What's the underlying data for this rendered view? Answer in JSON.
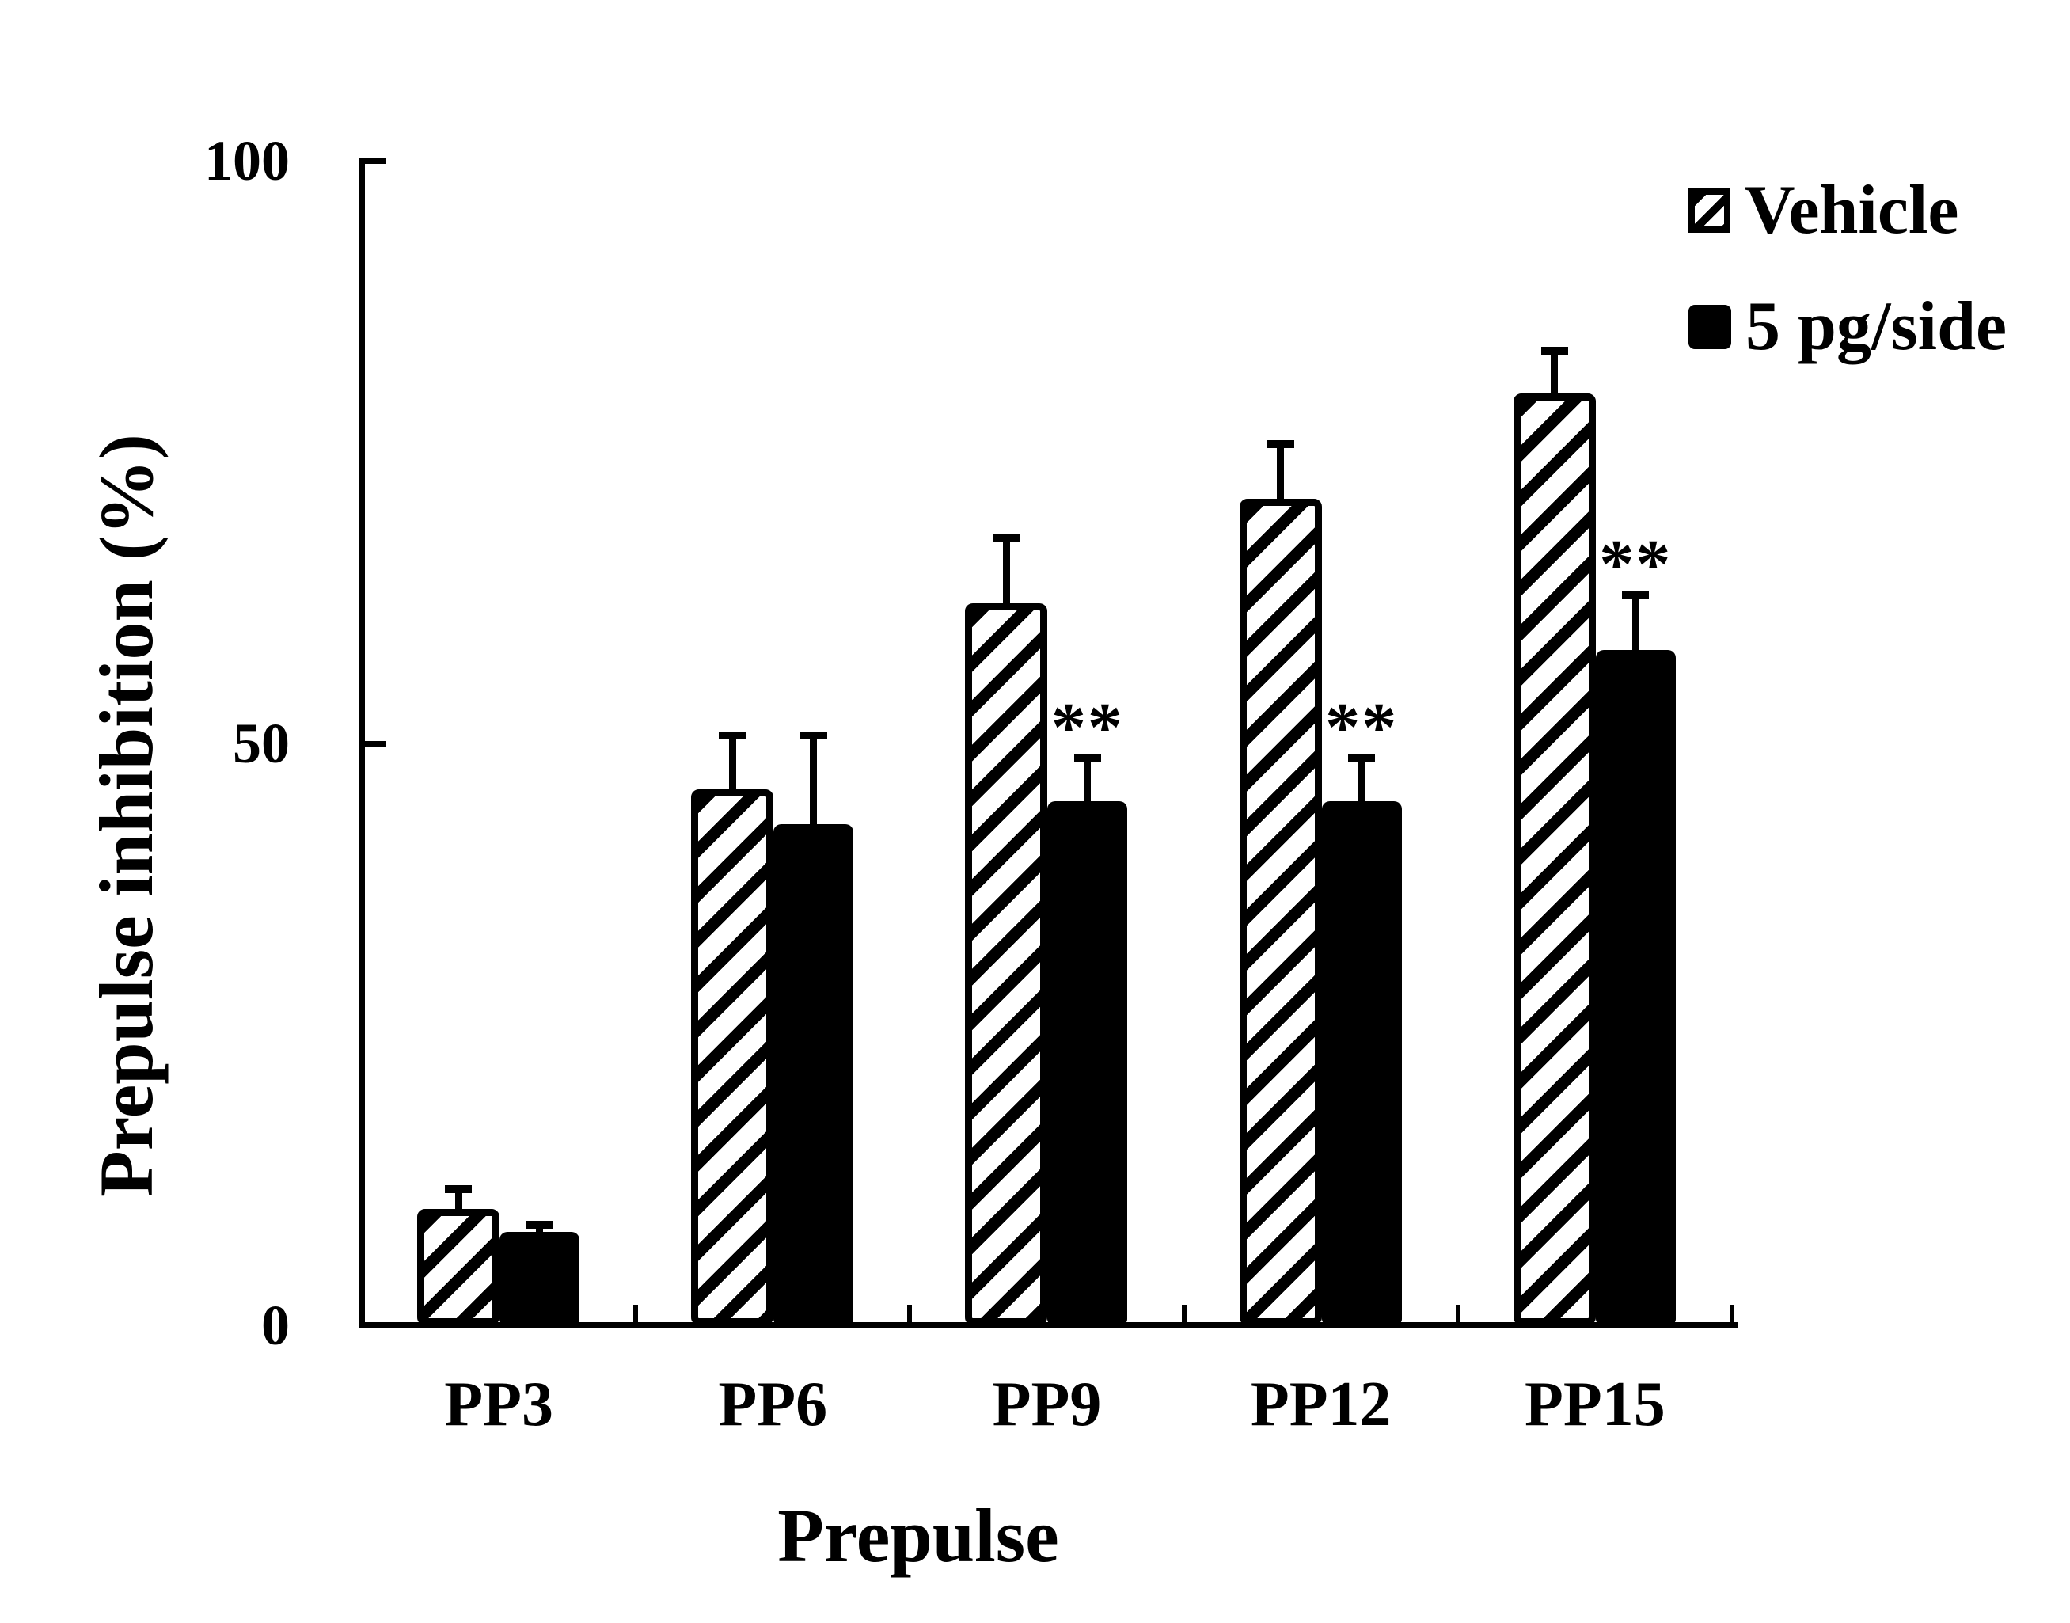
{
  "colors": {
    "ink": "#000000",
    "background": "#ffffff"
  },
  "chart_data": {
    "type": "bar",
    "title": "",
    "xlabel": "Prepulse",
    "ylabel": "Prepulse inhibition (%)",
    "ylim": [
      0,
      100
    ],
    "yticks": [
      0,
      50,
      100
    ],
    "grid": false,
    "legend_position": "top-right",
    "categories": [
      "PP3",
      "PP6",
      "PP9",
      "PP12",
      "PP15"
    ],
    "series": [
      {
        "name": "Vehicle",
        "style": "hatched",
        "values": [
          10,
          46,
          62,
          71,
          80
        ],
        "errors_plus": [
          2,
          5,
          6,
          5,
          4
        ]
      },
      {
        "name": "5 pg/side",
        "style": "solid",
        "values": [
          8,
          43,
          45,
          45,
          58
        ],
        "errors_plus": [
          1,
          8,
          4,
          4,
          5
        ]
      }
    ],
    "significance_markers": [
      {
        "category": "PP9",
        "series": "5 pg/side",
        "label": "**"
      },
      {
        "category": "PP12",
        "series": "5 pg/side",
        "label": "**"
      },
      {
        "category": "PP15",
        "series": "5 pg/side",
        "label": "**"
      }
    ]
  }
}
